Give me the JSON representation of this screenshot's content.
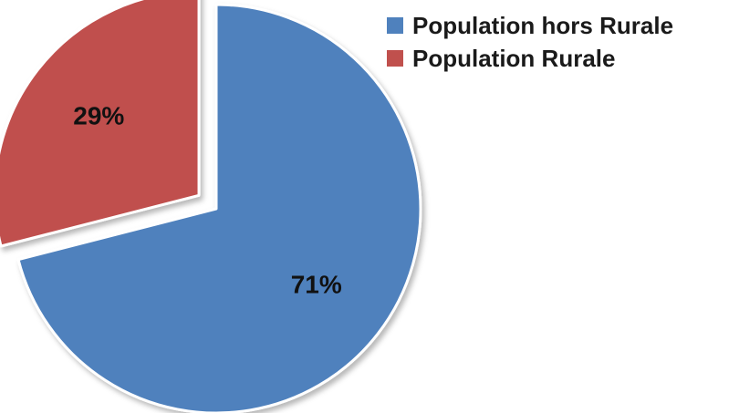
{
  "chart_data": {
    "type": "pie",
    "title": "",
    "categories": [
      "Population hors Rurale",
      "Population Rurale"
    ],
    "values": [
      71,
      29
    ],
    "unit": "%",
    "data_labels": [
      "71%",
      "29%"
    ],
    "colors": [
      "#4F81BD",
      "#C0504D"
    ],
    "exploded": [
      false,
      true
    ],
    "legend_placement": "top-right"
  },
  "legend": {
    "items": [
      {
        "label": "Population hors Rurale",
        "color": "#4F81BD"
      },
      {
        "label": "Population Rurale",
        "color": "#C0504D"
      }
    ]
  }
}
